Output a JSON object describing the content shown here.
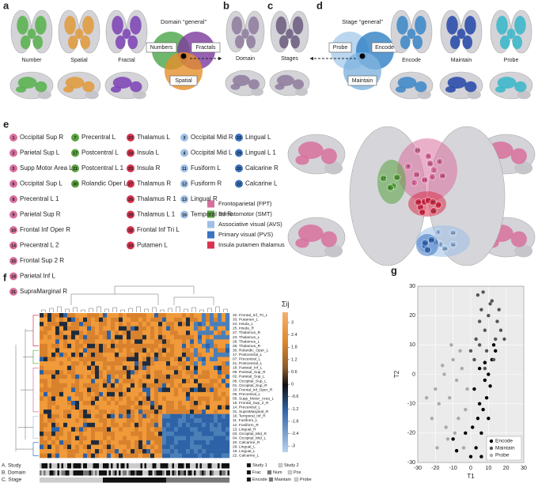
{
  "panel_labels": [
    "a",
    "b",
    "c",
    "d",
    "e",
    "f",
    "g"
  ],
  "panel_a": {
    "brain_labels": [
      "Number",
      "Spatial",
      "Fractal"
    ],
    "venn_title": "Domain “general”",
    "venn_labels": [
      "Numbers",
      "Fractals",
      "Spatial"
    ]
  },
  "panel_b": {
    "label": "Domain"
  },
  "panel_c": {
    "label": "Stages"
  },
  "panel_d": {
    "venn_title": "Stage “general”",
    "venn_labels": [
      "Probe",
      "Encode",
      "Maintain"
    ],
    "brain_labels": [
      "Encode",
      "Maintain",
      "Probe"
    ]
  },
  "panel_e": {
    "networks": [
      {
        "name": "Frontoparietal (FPT)",
        "color": "#d8709e",
        "regions": [
          {
            "number": 1,
            "name": "Occipital Sup R"
          },
          {
            "number": 2,
            "name": "Parietal Sup L"
          },
          {
            "number": 5,
            "name": "Supp Motor Area L"
          },
          {
            "number": 6,
            "name": "Occipital Sup L"
          },
          {
            "number": 8,
            "name": "Precentral L 1"
          },
          {
            "number": 9,
            "name": "Parietal Sup R"
          },
          {
            "number": 10,
            "name": "Frontal Inf Oper R"
          },
          {
            "number": 14,
            "name": "Precentral L 2"
          },
          {
            "number": 15,
            "name": "Frontal Sup 2 R"
          },
          {
            "number": 18,
            "name": "Parietal Inf L"
          },
          {
            "number": 31,
            "name": "SupraMarginal R"
          }
        ]
      },
      {
        "name": "Somatomotor (SMT)",
        "color": "#5aa33f",
        "regions": [
          {
            "number": 7,
            "name": "Precentral L"
          },
          {
            "number": 17,
            "name": "Postcentral L"
          },
          {
            "number": 21,
            "name": "Postcentral L 1"
          },
          {
            "number": 30,
            "name": "Rolandic Oper L"
          }
        ]
      },
      {
        "name": "Associative visual (AVS)",
        "color": "#9fbfe6",
        "regions": [
          {
            "number": 3,
            "name": "Occipital Mid R"
          },
          {
            "number": 4,
            "name": "Occipital Mid L"
          },
          {
            "number": 11,
            "name": "Fusiform L"
          },
          {
            "number": 12,
            "name": "Fusiform R"
          },
          {
            "number": 13,
            "name": "Lingual R"
          },
          {
            "number": 16,
            "name": "Temporal Inf R"
          }
        ]
      },
      {
        "name": "Primary visual (PVS)",
        "color": "#3a73c2",
        "regions": [
          {
            "number": 19,
            "name": "Lingual L"
          },
          {
            "number": 29,
            "name": "Lingual L 1"
          },
          {
            "number": 20,
            "name": "Calcarine R"
          },
          {
            "number": 22,
            "name": "Calcarine L"
          }
        ]
      },
      {
        "name": "Insula putamen thalamus",
        "color": "#d8334f",
        "regions": [
          {
            "number": 23,
            "name": "Thalamus L"
          },
          {
            "number": 24,
            "name": "Insula L"
          },
          {
            "number": 25,
            "name": "Insula R"
          },
          {
            "number": 27,
            "name": "Thalamus R"
          },
          {
            "number": 26,
            "name": "Thalamus R 1"
          },
          {
            "number": 28,
            "name": "Thalamus L 1"
          },
          {
            "number": 32,
            "name": "Frontal Inf Tri L"
          },
          {
            "number": 33,
            "name": "Putamen L"
          }
        ]
      }
    ]
  },
  "panel_f": {
    "colorbar_label": "Σij",
    "colorbar_lim": [
      -3.3,
      3.5
    ],
    "colorbar_ticks": [
      3,
      2.4,
      1.8,
      1.2,
      0.6,
      0,
      -0.6,
      -1.2,
      -1.8,
      -2.4,
      -3
    ],
    "row_labels": [
      "32. Frontal_Inf_Tri_L",
      "33. Putamen_L",
      "24. Insula_L",
      "25. Insula_R",
      "27. Thalamus_R",
      "23. Thalamus_L",
      "28. Thalamus_L",
      "26. Thalamus_R",
      "30. Rolandic_Oper_L",
      "17. Postcentral_L",
      "07. Precentral_L",
      "21. Postcentral_L",
      "18. Parietal_Inf_L",
      "09. Parietal_Sup_R",
      "02. Parietal_Sup_L",
      "06. Occipital_Sup_L",
      "01. Occipital_Sup_R",
      "10. Frontal_Inf_Oper_R",
      "08. Precentral_L",
      "05. Supp_Motor_Area_L",
      "15. Frontal_Sup_2_R",
      "14. Precentral_L",
      "31. SupraMarginal_R",
      "16. Temporal_Inf_R",
      "11. Fusiform_L",
      "12. Fusiform_R",
      "13. Lingual_R",
      "03. Occipital_Mid_R",
      "04. Occipital_Mid_L",
      "20. Calcarine_R",
      "29. Lingual_L",
      "19. Lingual_L",
      "22. Calcarine_L"
    ],
    "tracks": [
      "A. Study",
      "B. Domain",
      "C. Stage"
    ],
    "track_legend": [
      {
        "label": "Study 1",
        "color": "#111111"
      },
      {
        "label": "Study 2",
        "color": "#cccccc"
      },
      {
        "label": "Frac",
        "color": "#111111"
      },
      {
        "label": "Num",
        "color": "#777777"
      },
      {
        "label": "Pos",
        "color": "#cccccc"
      },
      {
        "label": "Encode",
        "color": "#111111"
      },
      {
        "label": "Maintain",
        "color": "#777777"
      },
      {
        "label": "Probe",
        "color": "#cccccc"
      }
    ]
  },
  "chart_data": {
    "type": "scatter",
    "xlabel": "T1",
    "ylabel": "T2",
    "xlim": [
      -30,
      30
    ],
    "ylim": [
      -30,
      30
    ],
    "xticks": [
      -30,
      -20,
      -10,
      0,
      10,
      20,
      30
    ],
    "yticks": [
      -30,
      -20,
      -10,
      0,
      10,
      20,
      30
    ],
    "grid": true,
    "legend": "lower right",
    "series": [
      {
        "name": "Encode",
        "color": "#000000",
        "x": [
          2,
          5,
          8,
          10,
          12,
          4,
          6,
          9,
          14,
          3,
          7,
          11,
          1,
          5,
          8,
          13,
          0,
          -3,
          6,
          10,
          -8,
          -10
        ],
        "y": [
          -5,
          -10,
          -2,
          0,
          5,
          -15,
          -20,
          -8,
          8,
          -25,
          -12,
          -4,
          -18,
          2,
          4,
          10,
          -28,
          -20,
          -28,
          -15,
          -26,
          -22
        ]
      },
      {
        "name": "Maintain",
        "color": "#555555",
        "x": [
          2,
          5,
          8,
          10,
          12,
          15,
          3,
          6,
          9,
          14,
          17,
          4,
          7,
          11,
          13,
          0,
          16,
          19,
          5,
          8
        ],
        "y": [
          5,
          10,
          15,
          20,
          25,
          18,
          12,
          22,
          8,
          12,
          15,
          27,
          28,
          24,
          5,
          8,
          22,
          12,
          18,
          2
        ]
      },
      {
        "name": "Probe",
        "color": "#aaaaaa",
        "x": [
          -20,
          -15,
          -10,
          -5,
          -18,
          -12,
          -8,
          -3,
          -22,
          -14,
          -6,
          -16,
          -9,
          -2,
          -25,
          -11,
          -7,
          -13,
          -19,
          -4
        ],
        "y": [
          -5,
          0,
          5,
          2,
          -10,
          -8,
          -2,
          -12,
          -15,
          -18,
          8,
          3,
          -20,
          -5,
          -8,
          10,
          -15,
          -22,
          -25,
          -25
        ]
      }
    ]
  }
}
